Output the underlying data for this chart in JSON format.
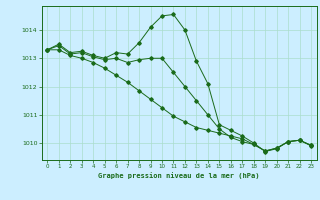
{
  "title": "Graphe pression niveau de la mer (hPa)",
  "background_color": "#cceeff",
  "grid_color": "#aaddcc",
  "line_color": "#1a6b1a",
  "marker_color": "#1a6b1a",
  "ylim": [
    1009.4,
    1014.85
  ],
  "xlim": [
    -0.5,
    23.5
  ],
  "yticks": [
    1010,
    1011,
    1012,
    1013,
    1014
  ],
  "xticks": [
    0,
    1,
    2,
    3,
    4,
    5,
    6,
    7,
    8,
    9,
    10,
    11,
    12,
    13,
    14,
    15,
    16,
    17,
    18,
    19,
    20,
    21,
    22,
    23
  ],
  "line1": [
    1013.3,
    1013.5,
    1013.2,
    1013.25,
    1013.1,
    1013.0,
    1013.2,
    1013.15,
    1013.55,
    1014.1,
    1014.5,
    1014.55,
    1014.0,
    1012.9,
    1012.1,
    1010.65,
    1010.45,
    1010.25,
    1010.0,
    1009.7,
    1009.8,
    1010.05,
    1010.1,
    1009.9
  ],
  "line2": [
    1013.3,
    1013.45,
    1013.15,
    1013.2,
    1013.05,
    1012.95,
    1013.0,
    1012.85,
    1012.95,
    1013.0,
    1013.0,
    1012.5,
    1012.0,
    1011.5,
    1011.0,
    1010.5,
    1010.2,
    1010.05,
    1009.95,
    1009.72,
    1009.82,
    1010.05,
    1010.1,
    1009.92
  ],
  "line3": [
    1013.3,
    1013.3,
    1013.1,
    1013.0,
    1012.85,
    1012.65,
    1012.4,
    1012.15,
    1011.85,
    1011.55,
    1011.25,
    1010.95,
    1010.75,
    1010.55,
    1010.45,
    1010.35,
    1010.25,
    1010.15,
    1009.95,
    1009.72,
    1009.82,
    1010.05,
    1010.1,
    1009.92
  ]
}
